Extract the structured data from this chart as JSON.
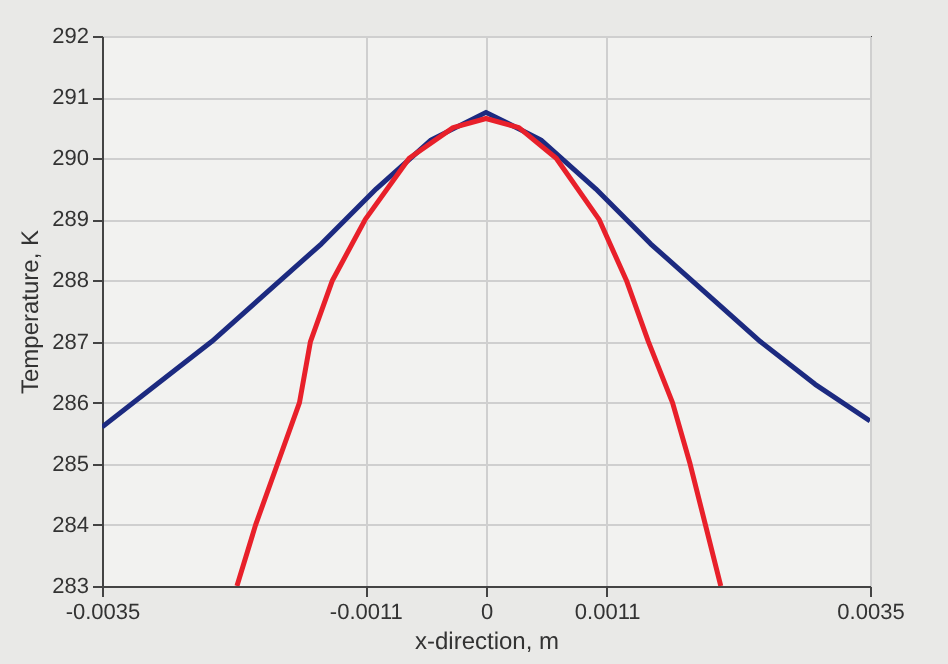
{
  "chart_data": {
    "type": "line",
    "xlabel": "x-direction, m",
    "ylabel": "Temperature, K",
    "xlim": [
      -0.0035,
      0.0035
    ],
    "xticks": [
      -0.0035,
      -0.0011,
      0,
      0.0011,
      0.0035
    ],
    "ylim": [
      283,
      292
    ],
    "yticks": [
      283,
      284,
      285,
      286,
      287,
      288,
      289,
      290,
      291,
      292
    ],
    "grid": true,
    "legend": false,
    "marker": "none",
    "line_style": "solid",
    "series": [
      {
        "color": "#1c2a80",
        "x": [
          -0.0035,
          -0.003,
          -0.0025,
          -0.002,
          -0.0015,
          -0.001,
          -0.0005,
          0,
          0.0005,
          0.001,
          0.0015,
          0.002,
          0.0025,
          0.003,
          0.0035
        ],
        "values": [
          285.6,
          286.3,
          287.0,
          287.8,
          288.6,
          289.5,
          290.3,
          290.75,
          290.3,
          289.5,
          288.6,
          287.8,
          287.0,
          286.3,
          285.7
        ]
      },
      {
        "color": "#e8202a",
        "x": [
          -0.00227,
          -0.0021,
          -0.0019,
          -0.0017,
          -0.0016,
          -0.0014,
          -0.0011,
          -0.0007,
          -0.0003,
          0,
          0.0003,
          0.00064,
          0.00103,
          0.00128,
          0.00148,
          0.0017,
          0.00186,
          0.002,
          0.00214
        ],
        "values": [
          283,
          284,
          285,
          286,
          287,
          288,
          289,
          290,
          290.5,
          290.65,
          290.5,
          290,
          289,
          288,
          287,
          286,
          285,
          284,
          283
        ]
      }
    ]
  }
}
